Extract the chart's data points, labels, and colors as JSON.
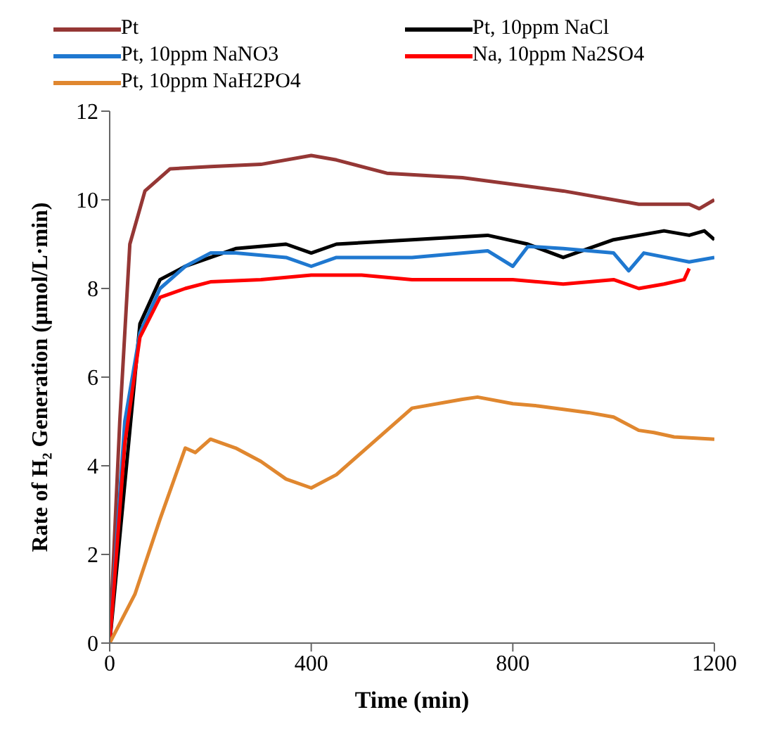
{
  "chart_data": {
    "type": "line",
    "xlabel": "Time (min)",
    "ylabel": "Rate of H₂ Generation (μmol/L·min)",
    "xlim": [
      0,
      1200
    ],
    "xticks": [
      0,
      400,
      800,
      1200
    ],
    "ylim": [
      0,
      12
    ],
    "yticks": [
      0,
      2,
      4,
      6,
      8,
      10,
      12
    ],
    "grid": false,
    "legend": "top",
    "marker": "none",
    "line_style": "solid",
    "series": [
      {
        "name": "Pt",
        "color": "#953735",
        "x": [
          0,
          20,
          40,
          70,
          120,
          200,
          300,
          400,
          450,
          550,
          700,
          900,
          1050,
          1150,
          1170,
          1200
        ],
        "values": [
          0,
          5,
          9,
          10.2,
          10.7,
          10.75,
          10.8,
          11,
          10.9,
          10.6,
          10.5,
          10.2,
          9.9,
          9.9,
          9.8,
          10
        ]
      },
      {
        "name": "Pt, 10ppm NaCl",
        "color": "#000000",
        "x": [
          0,
          60,
          100,
          150,
          200,
          250,
          350,
          400,
          450,
          600,
          750,
          830,
          900,
          1000,
          1100,
          1150,
          1180,
          1200
        ],
        "values": [
          0,
          7.2,
          8.2,
          8.5,
          8.7,
          8.9,
          9,
          8.8,
          9,
          9.1,
          9.2,
          9,
          8.7,
          9.1,
          9.3,
          9.2,
          9.3,
          9.1
        ]
      },
      {
        "name": "Pt, 10ppm NaNO3",
        "color": "#1f78d0",
        "x": [
          0,
          30,
          60,
          100,
          150,
          200,
          250,
          350,
          400,
          450,
          600,
          750,
          800,
          830,
          900,
          1000,
          1030,
          1060,
          1150,
          1200
        ],
        "values": [
          0,
          5,
          7,
          8,
          8.5,
          8.8,
          8.8,
          8.7,
          8.5,
          8.7,
          8.7,
          8.85,
          8.5,
          8.95,
          8.9,
          8.8,
          8.4,
          8.8,
          8.6,
          8.7
        ]
      },
      {
        "name": "Na, 10ppm Na2SO4",
        "color": "#ff0000",
        "x": [
          0,
          30,
          60,
          100,
          150,
          200,
          300,
          400,
          500,
          600,
          800,
          900,
          1000,
          1050,
          1100,
          1140,
          1150
        ],
        "values": [
          0,
          4.5,
          6.9,
          7.8,
          8,
          8.15,
          8.2,
          8.3,
          8.3,
          8.2,
          8.2,
          8.1,
          8.2,
          8,
          8.1,
          8.2,
          8.45
        ]
      },
      {
        "name": "Pt, 10ppm NaH2PO4",
        "color": "#e0872f",
        "x": [
          0,
          50,
          100,
          150,
          170,
          200,
          250,
          300,
          350,
          400,
          450,
          500,
          550,
          600,
          700,
          730,
          800,
          850,
          950,
          1000,
          1050,
          1080,
          1120,
          1200
        ],
        "values": [
          0,
          1.1,
          2.8,
          4.4,
          4.3,
          4.6,
          4.4,
          4.1,
          3.7,
          3.5,
          3.8,
          4.3,
          4.8,
          5.3,
          5.5,
          5.55,
          5.4,
          5.35,
          5.2,
          5.1,
          4.8,
          4.75,
          4.65,
          4.6
        ]
      }
    ]
  }
}
